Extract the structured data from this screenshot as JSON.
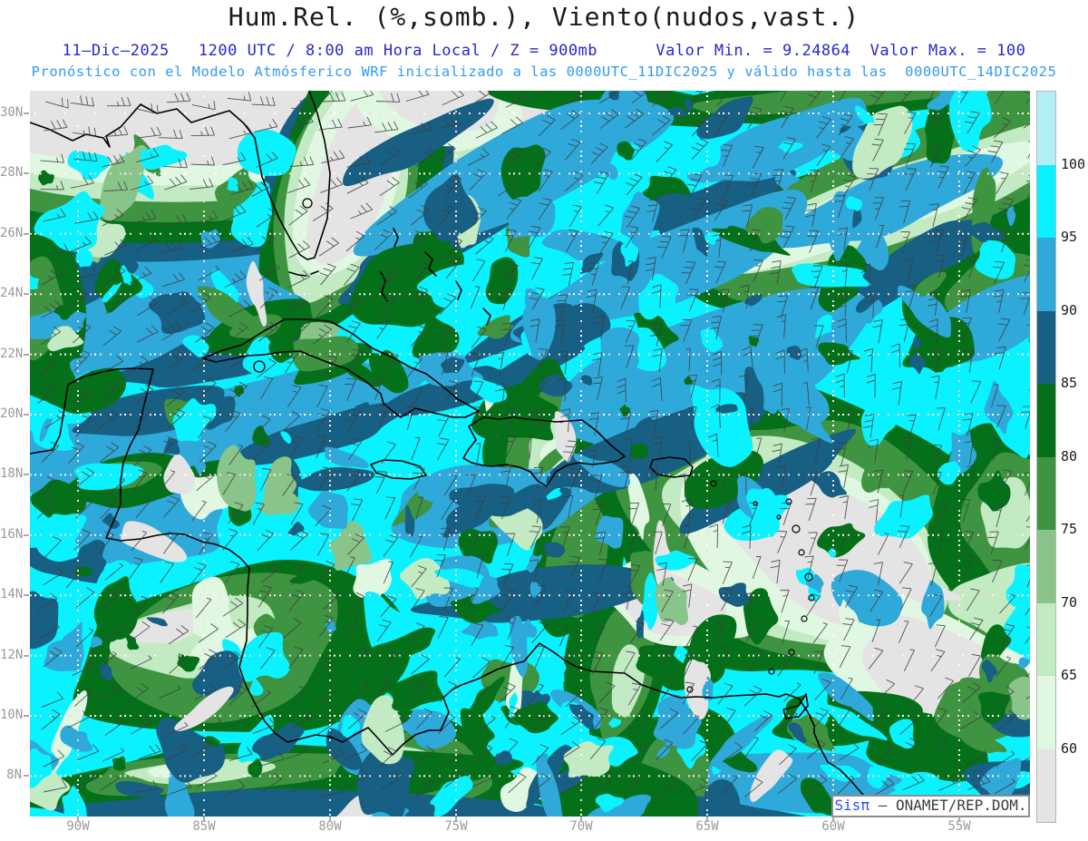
{
  "header": {
    "title": "Hum.Rel. (%,somb.), Viento(nudos,vast.)",
    "subtitle1": "11–Dic–2025   1200 UTC / 8:00 am Hora Local / Z = 900mb      Valor Min. = 9.24864  Valor Max. = 100",
    "subtitle2": "Pronóstico con el Modelo Atmósferico WRF inicializado a las 0000UTC_11DIC2025 y válido hasta las  0000UTC_14DIC2025",
    "title_color": "#1a1a1a",
    "subtitle1_color": "#2828cc",
    "subtitle2_color": "#339bf0"
  },
  "axes": {
    "lat_ticks": [
      "30N",
      "28N",
      "26N",
      "24N",
      "22N",
      "20N",
      "18N",
      "16N",
      "14N",
      "12N",
      "10N",
      "8N"
    ],
    "lon_ticks": [
      "90W",
      "85W",
      "80W",
      "75W",
      "70W",
      "65W",
      "60W",
      "55W"
    ],
    "label_color": "#9a9a9a"
  },
  "colorbar": {
    "tick_labels": [
      "100",
      "95",
      "90",
      "85",
      "80",
      "75",
      "70",
      "65",
      "60"
    ],
    "segment_colors": [
      "#b2eff4",
      "#0af2ff",
      "#2fa9da",
      "#175f83",
      "#05701a",
      "#3f9442",
      "#89c48b",
      "#c2eac3",
      "#e0f8e1",
      "#e4e4e4"
    ]
  },
  "watermark": {
    "brand": "Sisπ",
    "sep": " – ",
    "text": "ONAMET/REP.DOM."
  },
  "chart_data": {
    "type": "heatmap",
    "title": "Hum.Rel. (%,somb.), Viento(nudos,vast.)",
    "variable": "Relative humidity (%, shaded) and wind (knots, barbs)",
    "level": "900mb",
    "valid_time": "11-Dic-2025 1200 UTC / 8:00 am Hora Local",
    "model": "WRF",
    "init_time": "0000UTC_11DIC2025",
    "end_time": "0000UTC_14DIC2025",
    "value_min": 9.24864,
    "value_max": 100,
    "levels": [
      60,
      65,
      70,
      75,
      80,
      85,
      90,
      95,
      100
    ],
    "palette": [
      "#e4e4e4",
      "#e0f8e1",
      "#c2eac3",
      "#89c48b",
      "#3f9442",
      "#05701a",
      "#175f83",
      "#2fa9da",
      "#0af2ff",
      "#b2eff4"
    ],
    "x_axis": {
      "ticks": [
        "90W",
        "85W",
        "80W",
        "75W",
        "70W",
        "65W",
        "60W",
        "55W"
      ]
    },
    "y_axis": {
      "ticks": [
        "30N",
        "28N",
        "26N",
        "24N",
        "22N",
        "20N",
        "18N",
        "16N",
        "14N",
        "12N",
        "10N",
        "8N"
      ]
    },
    "grid": true,
    "legend_position": "right",
    "region": "Gulf of Mexico / Caribbean / Tropical Atlantic"
  }
}
